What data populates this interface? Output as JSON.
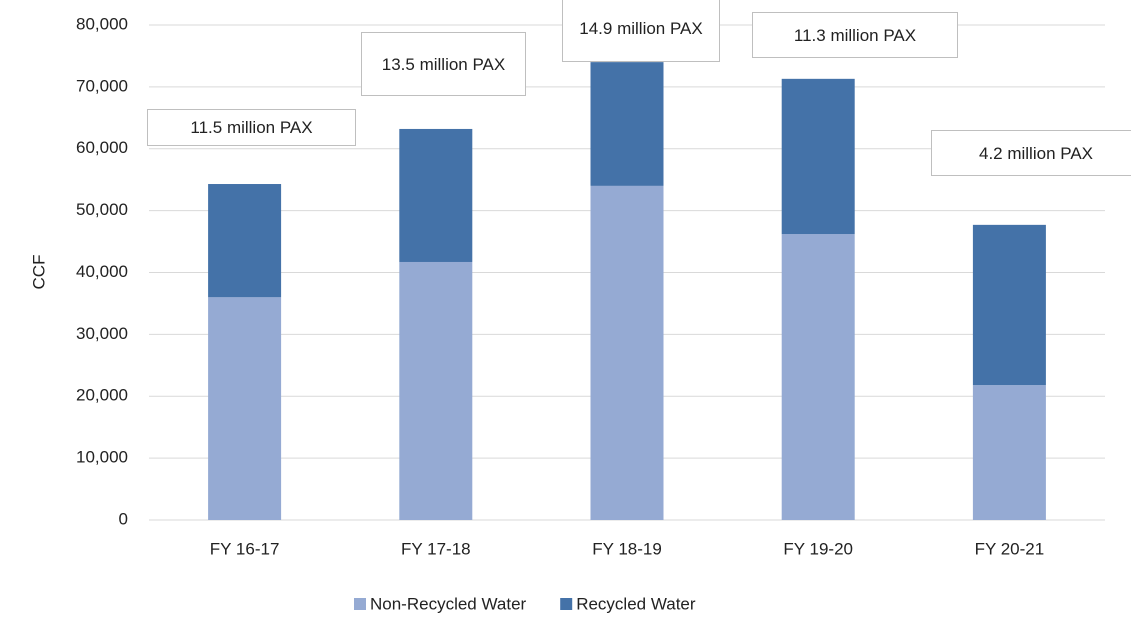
{
  "chart_data": {
    "type": "stacked_bar",
    "y_label": "CCF",
    "categories": [
      "FY 16-17",
      "FY 17-18",
      "FY 18-19",
      "FY 19-20",
      "FY 20-21"
    ],
    "series": [
      {
        "name": "Non-Recycled Water",
        "color": "#95aad3",
        "values": [
          36000,
          41700,
          54000,
          46200,
          21800
        ]
      },
      {
        "name": "Recycled Water",
        "color": "#4472a8",
        "values": [
          18300,
          21500,
          20000,
          25100,
          25900
        ]
      }
    ],
    "ylim": [
      0,
      80000
    ],
    "yticks": [
      0,
      {
        "value": 10000,
        "label": "10,000"
      },
      {
        "value": 20000,
        "label": "20,000"
      },
      {
        "value": 30000,
        "label": "30,000"
      },
      {
        "value": 40000,
        "label": "40,000"
      },
      {
        "value": 50000,
        "label": "50,000"
      },
      {
        "value": 60000,
        "label": "60,000"
      },
      {
        "value": 70000,
        "label": "70,000"
      },
      {
        "value": 80000,
        "label": "80,000"
      }
    ],
    "grid": true,
    "legend": "bottom",
    "annotations": [
      "11.5 million PAX",
      "13.5 million PAX",
      "14.9 million PAX",
      "11.3 million PAX",
      "4.2 million PAX"
    ]
  }
}
